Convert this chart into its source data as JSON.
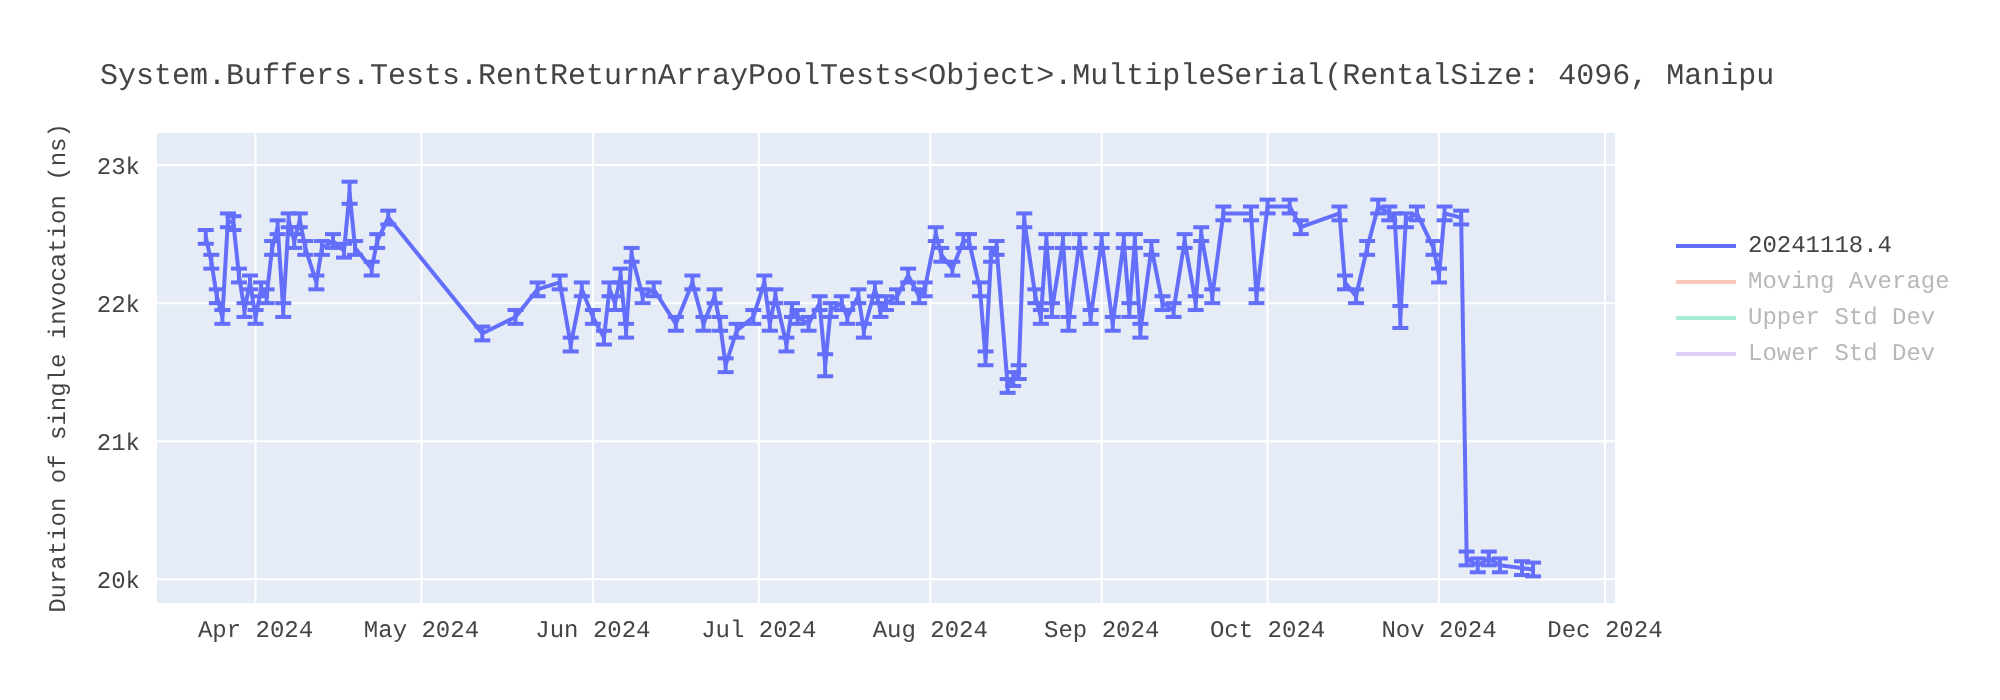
{
  "chart_data": {
    "type": "line",
    "title": "System.Buffers.Tests.RentReturnArrayPoolTests<Object>.MultipleSerial(RentalSize: 4096, Manipu",
    "ylabel": "Duration of single invocation (ns)",
    "x": [
      "2024-03-23",
      "2024-03-24",
      "2024-03-25",
      "2024-03-26",
      "2024-03-27",
      "2024-03-28",
      "2024-03-29",
      "2024-03-30",
      "2024-03-31",
      "2024-04-01",
      "2024-04-02",
      "2024-04-03",
      "2024-04-04",
      "2024-04-05",
      "2024-04-06",
      "2024-04-07",
      "2024-04-08",
      "2024-04-09",
      "2024-04-10",
      "2024-04-12",
      "2024-04-13",
      "2024-04-15",
      "2024-04-17",
      "2024-04-18",
      "2024-04-19",
      "2024-04-22",
      "2024-04-23",
      "2024-04-25",
      "2024-05-12",
      "2024-05-18",
      "2024-05-22",
      "2024-05-26",
      "2024-05-28",
      "2024-05-30",
      "2024-06-01",
      "2024-06-03",
      "2024-06-04",
      "2024-06-05",
      "2024-06-06",
      "2024-06-07",
      "2024-06-08",
      "2024-06-10",
      "2024-06-12",
      "2024-06-16",
      "2024-06-19",
      "2024-06-21",
      "2024-06-23",
      "2024-06-24",
      "2024-06-25",
      "2024-06-27",
      "2024-06-30",
      "2024-07-02",
      "2024-07-03",
      "2024-07-04",
      "2024-07-06",
      "2024-07-07",
      "2024-07-08",
      "2024-07-10",
      "2024-07-12",
      "2024-07-13",
      "2024-07-14",
      "2024-07-16",
      "2024-07-17",
      "2024-07-19",
      "2024-07-20",
      "2024-07-22",
      "2024-07-23",
      "2024-07-24",
      "2024-07-26",
      "2024-07-28",
      "2024-07-30",
      "2024-07-31",
      "2024-08-02",
      "2024-08-03",
      "2024-08-05",
      "2024-08-07",
      "2024-08-08",
      "2024-08-10",
      "2024-08-11",
      "2024-08-12",
      "2024-08-13",
      "2024-08-15",
      "2024-08-16",
      "2024-08-17",
      "2024-08-18",
      "2024-08-20",
      "2024-08-21",
      "2024-08-22",
      "2024-08-23",
      "2024-08-25",
      "2024-08-26",
      "2024-08-28",
      "2024-08-30",
      "2024-09-01",
      "2024-09-03",
      "2024-09-05",
      "2024-09-06",
      "2024-09-07",
      "2024-09-08",
      "2024-09-10",
      "2024-09-12",
      "2024-09-14",
      "2024-09-16",
      "2024-09-18",
      "2024-09-19",
      "2024-09-21",
      "2024-09-23",
      "2024-09-28",
      "2024-09-29",
      "2024-10-01",
      "2024-10-05",
      "2024-10-07",
      "2024-10-14",
      "2024-10-15",
      "2024-10-17",
      "2024-10-19",
      "2024-10-21",
      "2024-10-23",
      "2024-10-24",
      "2024-10-25",
      "2024-10-26",
      "2024-10-28",
      "2024-10-31",
      "2024-11-01",
      "2024-11-02",
      "2024-11-05",
      "2024-11-06",
      "2024-11-08",
      "2024-11-10",
      "2024-11-12",
      "2024-11-16",
      "2024-11-18"
    ],
    "series": [
      {
        "name": "20241118.4",
        "color": "#636efa",
        "values": [
          22480,
          22300,
          22050,
          21900,
          22600,
          22580,
          22200,
          21950,
          22150,
          21900,
          22100,
          22050,
          22400,
          22550,
          21950,
          22600,
          22450,
          22600,
          22400,
          22150,
          22400,
          22450,
          22380,
          22800,
          22400,
          22250,
          22450,
          22620,
          21780,
          21900,
          22100,
          22150,
          21700,
          22100,
          21900,
          21750,
          22100,
          22000,
          22200,
          21800,
          22350,
          22050,
          22100,
          21850,
          22150,
          21850,
          22050,
          21850,
          21550,
          21800,
          21900,
          22150,
          21850,
          22050,
          21700,
          21950,
          21900,
          21850,
          22000,
          21550,
          21950,
          22000,
          21900,
          22050,
          21800,
          22100,
          21950,
          22000,
          22050,
          22200,
          22050,
          22100,
          22500,
          22350,
          22250,
          22450,
          22450,
          22100,
          21600,
          22350,
          22400,
          21400,
          21450,
          21500,
          22600,
          22050,
          21900,
          22450,
          21950,
          22450,
          21850,
          22450,
          21900,
          22450,
          21850,
          22450,
          21950,
          22450,
          21800,
          22400,
          22000,
          21950,
          22450,
          22000,
          22500,
          22050,
          22650,
          22650,
          22050,
          22700,
          22700,
          22550,
          22650,
          22150,
          22050,
          22400,
          22700,
          22650,
          22600,
          21900,
          22600,
          22650,
          22400,
          22200,
          22650,
          22620,
          20150,
          20100,
          20150,
          20100,
          20080,
          20070
        ],
        "errors": [
          50,
          50,
          50,
          50,
          50,
          50,
          50,
          50,
          50,
          50,
          50,
          50,
          50,
          50,
          50,
          50,
          50,
          50,
          50,
          50,
          50,
          50,
          50,
          80,
          50,
          50,
          50,
          50,
          50,
          50,
          50,
          50,
          50,
          50,
          50,
          50,
          50,
          50,
          50,
          50,
          50,
          50,
          50,
          50,
          50,
          50,
          50,
          50,
          50,
          50,
          50,
          50,
          50,
          50,
          50,
          50,
          50,
          50,
          50,
          80,
          50,
          50,
          50,
          50,
          50,
          50,
          50,
          50,
          50,
          50,
          50,
          50,
          50,
          50,
          50,
          50,
          50,
          50,
          50,
          50,
          50,
          50,
          50,
          50,
          50,
          50,
          50,
          50,
          50,
          50,
          50,
          50,
          50,
          50,
          50,
          50,
          50,
          50,
          50,
          50,
          50,
          50,
          50,
          50,
          50,
          50,
          50,
          50,
          50,
          50,
          50,
          50,
          50,
          50,
          50,
          50,
          50,
          50,
          50,
          80,
          50,
          50,
          50,
          50,
          50,
          50,
          50,
          50,
          50,
          50,
          50,
          50
        ]
      },
      {
        "name": "Moving Average",
        "color": "#f4a58b",
        "values": [
          null,
          null,
          null,
          null,
          null,
          null,
          null,
          null,
          null,
          null,
          null,
          null,
          null,
          null,
          null,
          null,
          null,
          null,
          null,
          null,
          null,
          null,
          null,
          null,
          null,
          null,
          null,
          null,
          null,
          null,
          null,
          null,
          null,
          null,
          null,
          null,
          null,
          null,
          null,
          null,
          null,
          null,
          null,
          null,
          null,
          null,
          null,
          null,
          null,
          null,
          null,
          null,
          null,
          null,
          null,
          null,
          null,
          null,
          null,
          null,
          null,
          null,
          null,
          null,
          null,
          null,
          null,
          null,
          null,
          null,
          null,
          null,
          null,
          null,
          null,
          null,
          null,
          null,
          null,
          null,
          null,
          null,
          null,
          null,
          null,
          null,
          null,
          null,
          null,
          null,
          null,
          null,
          null,
          null,
          null,
          null,
          null,
          null,
          null,
          null,
          null,
          null,
          null,
          null,
          null,
          null,
          null,
          null,
          null,
          null,
          null,
          null,
          null,
          null,
          null,
          null,
          null,
          null,
          null,
          null,
          null,
          null,
          null,
          null,
          null,
          null,
          null,
          null,
          null,
          null,
          null,
          null
        ]
      },
      {
        "name": "Upper Std Dev",
        "color": "#72e0b3",
        "values": [
          null,
          null,
          null,
          null,
          null,
          null,
          null,
          null,
          null,
          null,
          null,
          null,
          null,
          null,
          null,
          null,
          null,
          null,
          null,
          null,
          null,
          null,
          null,
          null,
          null,
          null,
          null,
          null,
          null,
          null,
          null,
          null,
          null,
          null,
          null,
          null,
          null,
          null,
          null,
          null,
          null,
          null,
          null,
          null,
          null,
          null,
          null,
          null,
          null,
          null,
          null,
          null,
          null,
          null,
          null,
          null,
          null,
          null,
          null,
          null,
          null,
          null,
          null,
          null,
          null,
          null,
          null,
          null,
          null,
          null,
          null,
          null,
          null,
          null,
          null,
          null,
          null,
          null,
          null,
          null,
          null,
          null,
          null,
          null,
          null,
          null,
          null,
          null,
          null,
          null,
          null,
          null,
          null,
          null,
          null,
          null,
          null,
          null,
          null,
          null,
          null,
          null,
          null,
          null,
          null,
          null,
          null,
          null,
          null,
          null,
          null,
          null,
          null,
          null,
          null,
          null,
          null,
          null,
          null,
          null,
          null,
          null,
          null,
          null,
          null,
          null,
          null,
          null,
          null,
          null,
          null,
          null
        ]
      },
      {
        "name": "Lower Std Dev",
        "color": "#c9b0f5",
        "values": [
          null,
          null,
          null,
          null,
          null,
          null,
          null,
          null,
          null,
          null,
          null,
          null,
          null,
          null,
          null,
          null,
          null,
          null,
          null,
          null,
          null,
          null,
          null,
          null,
          null,
          null,
          null,
          null,
          null,
          null,
          null,
          null,
          null,
          null,
          null,
          null,
          null,
          null,
          null,
          null,
          null,
          null,
          null,
          null,
          null,
          null,
          null,
          null,
          null,
          null,
          null,
          null,
          null,
          null,
          null,
          null,
          null,
          null,
          null,
          null,
          null,
          null,
          null,
          null,
          null,
          null,
          null,
          null,
          null,
          null,
          null,
          null,
          null,
          null,
          null,
          null,
          null,
          null,
          null,
          null,
          null,
          null,
          null,
          null,
          null,
          null,
          null,
          null,
          null,
          null,
          null,
          null,
          null,
          null,
          null,
          null,
          null,
          null,
          null,
          null,
          null,
          null,
          null,
          null,
          null,
          null,
          null,
          null,
          null,
          null,
          null,
          null,
          null,
          null,
          null,
          null,
          null,
          null,
          null,
          null,
          null,
          null,
          null,
          null,
          null,
          null,
          null,
          null,
          null,
          null,
          null,
          null
        ]
      }
    ],
    "xlim": [
      "2024-03-14",
      "2024-12-03"
    ],
    "xticks": [
      {
        "value": "2024-04-01",
        "label": "Apr 2024"
      },
      {
        "value": "2024-05-01",
        "label": "May 2024"
      },
      {
        "value": "2024-06-01",
        "label": "Jun 2024"
      },
      {
        "value": "2024-07-01",
        "label": "Jul 2024"
      },
      {
        "value": "2024-08-01",
        "label": "Aug 2024"
      },
      {
        "value": "2024-09-01",
        "label": "Sep 2024"
      },
      {
        "value": "2024-10-01",
        "label": "Oct 2024"
      },
      {
        "value": "2024-11-01",
        "label": "Nov 2024"
      },
      {
        "value": "2024-12-01",
        "label": "Dec 2024"
      }
    ],
    "ylim": [
      19820,
      23240
    ],
    "yticks": [
      {
        "value": 20000,
        "label": "20k"
      },
      {
        "value": 21000,
        "label": "21k"
      },
      {
        "value": 22000,
        "label": "22k"
      },
      {
        "value": 23000,
        "label": "23k"
      }
    ],
    "grid": true,
    "legend": "top right",
    "marker": "none",
    "line_style": "solid"
  }
}
